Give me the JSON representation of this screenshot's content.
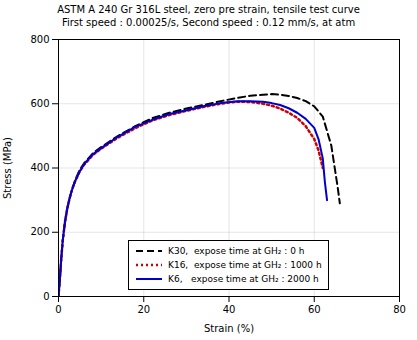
{
  "chart_data": {
    "type": "line",
    "title": "ASTM A 240 Gr 316L steel,  zero pre strain, tensile test curve",
    "subtitle": "First speed : 0.00025/s, Second speed : 0.12 mm/s, at atm",
    "x_label": "Strain (%)",
    "y_label": "Stress (MPa)",
    "xlim": [
      0,
      80
    ],
    "ylim": [
      0,
      800
    ],
    "xticks": [
      0,
      20,
      40,
      60,
      80
    ],
    "yticks": [
      0,
      200,
      400,
      600,
      800
    ],
    "grid": true,
    "legend": "lower center",
    "series": [
      {
        "name": "K30,  expose time at GH₂ : 0 h",
        "color": "#000000",
        "line_style": "dashed",
        "x": [
          0,
          0.3,
          0.6,
          1.0,
          1.5,
          2.0,
          2.5,
          3.0,
          3.5,
          4.0,
          4.5,
          5.0,
          6.0,
          8.0,
          10.0,
          14.0,
          18.0,
          22.0,
          26.0,
          30.0,
          34.0,
          38.0,
          42.0,
          45.0,
          48.0,
          50.0,
          52.0,
          54.0,
          56.0,
          58.0,
          60.0,
          62.0,
          64.0,
          65.5,
          66.0
        ],
        "values": [
          0,
          50,
          110,
          175,
          230,
          270,
          300,
          325,
          345,
          365,
          380,
          395,
          415,
          445,
          465,
          500,
          530,
          555,
          572,
          585,
          596,
          608,
          618,
          625,
          628,
          630,
          628,
          624,
          618,
          608,
          592,
          560,
          470,
          340,
          290
        ]
      },
      {
        "name": "K16,  expose time at GH₂ : 1000 h",
        "color": "#cc0000",
        "line_style": "dotted",
        "x": [
          0,
          0.3,
          0.6,
          1.0,
          1.5,
          2.0,
          2.5,
          3.0,
          3.5,
          4.0,
          4.5,
          5.0,
          6.0,
          8.0,
          10.0,
          14.0,
          18.0,
          22.0,
          26.0,
          30.0,
          34.0,
          38.0,
          40.0,
          42.0,
          44.0,
          46.0,
          48.0,
          50.0,
          52.0,
          54.0,
          56.0,
          58.0,
          60.0,
          61.0,
          62.0
        ],
        "values": [
          0,
          50,
          110,
          175,
          230,
          270,
          300,
          325,
          345,
          362,
          376,
          390,
          410,
          440,
          460,
          495,
          524,
          548,
          565,
          578,
          590,
          600,
          604,
          606,
          606,
          604,
          600,
          594,
          585,
          572,
          556,
          530,
          490,
          455,
          400
        ]
      },
      {
        "name": "K6,   expose time at GH₂ : 2000 h",
        "color": "#0000cc",
        "line_style": "solid",
        "x": [
          0,
          0.3,
          0.6,
          1.0,
          1.5,
          2.0,
          2.5,
          3.0,
          3.5,
          4.0,
          4.5,
          5.0,
          6.0,
          8.0,
          10.0,
          14.0,
          18.0,
          22.0,
          26.0,
          30.0,
          34.0,
          38.0,
          42.0,
          45.0,
          48.0,
          50.0,
          52.0,
          54.0,
          56.0,
          58.0,
          60.0,
          61.0,
          62.0,
          62.5,
          63.0
        ],
        "values": [
          0,
          50,
          110,
          175,
          230,
          270,
          300,
          325,
          345,
          362,
          376,
          390,
          412,
          442,
          462,
          498,
          528,
          550,
          568,
          580,
          592,
          602,
          608,
          608,
          606,
          602,
          596,
          586,
          572,
          553,
          525,
          490,
          430,
          355,
          300
        ]
      }
    ]
  }
}
